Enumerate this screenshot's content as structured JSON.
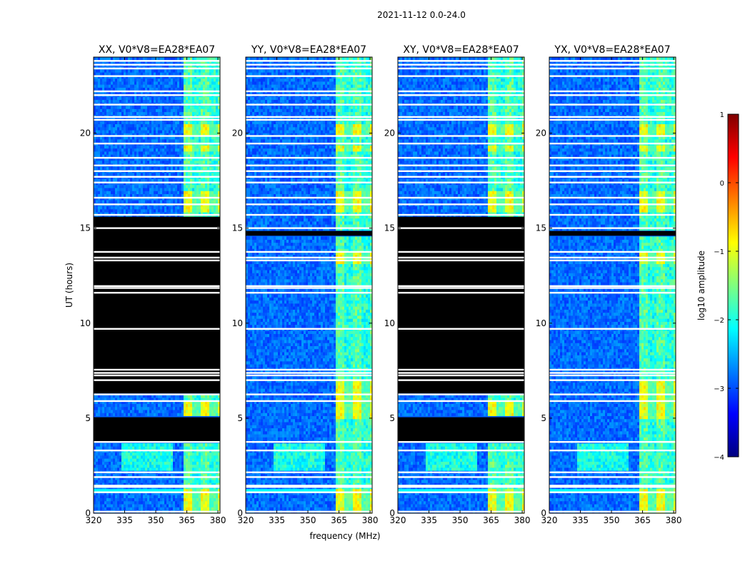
{
  "suptitle": "2021-11-12 0.0-24.0",
  "colors": {
    "cmap": [
      "#00007f",
      "#0000ff",
      "#007fff",
      "#00ffff",
      "#7fff7f",
      "#ffff00",
      "#ff7f00",
      "#ff0000",
      "#7f0000"
    ],
    "flagged_black": "#000000",
    "gap_white": "#ffffff"
  },
  "chart_data": [
    {
      "type": "heatmap",
      "title": "XX, V0*V8=EA28*EA07",
      "xlabel": "",
      "ylabel": "UT (hours)",
      "xlim": [
        320,
        381
      ],
      "ylim": [
        0,
        24
      ],
      "xticks": [
        "320",
        "335",
        "350",
        "365",
        "380"
      ],
      "yticks": [
        "0",
        "5",
        "10",
        "15",
        "20"
      ],
      "flag_bands_hours": [
        [
          3.75,
          5.05
        ],
        [
          6.3,
          15.6
        ]
      ],
      "strong_rfi_mhz": [
        [
          363,
          381
        ]
      ],
      "bright_hours": [
        [
          0,
          1.3
        ],
        [
          4.9,
          5.9
        ],
        [
          15.8,
          17.0
        ],
        [
          19.0,
          19.4
        ],
        [
          19.9,
          20.4
        ]
      ]
    },
    {
      "type": "heatmap",
      "title": "YY, V0*V8=EA28*EA07",
      "xlabel": "frequency (MHz)",
      "ylabel": "",
      "xlim": [
        320,
        381
      ],
      "ylim": [
        0,
        24
      ],
      "xticks": [
        "320",
        "335",
        "350",
        "365",
        "380"
      ],
      "yticks": [
        "0",
        "5",
        "10",
        "15",
        "20"
      ],
      "flag_bands_hours": [
        [
          14.6,
          14.85
        ]
      ],
      "strong_rfi_mhz": [
        [
          363,
          381
        ]
      ],
      "bright_hours": [
        [
          0,
          1.3
        ],
        [
          4.9,
          7.0
        ],
        [
          13.2,
          13.8
        ],
        [
          15.8,
          17.0
        ],
        [
          19.0,
          19.4
        ],
        [
          19.9,
          20.4
        ]
      ]
    },
    {
      "type": "heatmap",
      "title": "XY, V0*V8=EA28*EA07",
      "xlabel": "",
      "ylabel": "",
      "xlim": [
        320,
        381
      ],
      "ylim": [
        0,
        24
      ],
      "xticks": [
        "320",
        "335",
        "350",
        "365",
        "380"
      ],
      "yticks": [
        "0",
        "5",
        "10",
        "15",
        "20"
      ],
      "flag_bands_hours": [
        [
          3.75,
          5.05
        ],
        [
          6.3,
          15.6
        ]
      ],
      "strong_rfi_mhz": [
        [
          363,
          381
        ]
      ],
      "bright_hours": [
        [
          0,
          1.3
        ],
        [
          4.9,
          5.9
        ],
        [
          15.8,
          17.0
        ],
        [
          19.0,
          19.4
        ],
        [
          19.9,
          20.4
        ]
      ]
    },
    {
      "type": "heatmap",
      "title": "YX, V0*V8=EA28*EA07",
      "xlabel": "",
      "ylabel": "",
      "xlim": [
        320,
        381
      ],
      "ylim": [
        0,
        24
      ],
      "xticks": [
        "320",
        "335",
        "350",
        "365",
        "380"
      ],
      "yticks": [
        "0",
        "5",
        "10",
        "15",
        "20"
      ],
      "flag_bands_hours": [
        [
          14.6,
          14.85
        ]
      ],
      "strong_rfi_mhz": [
        [
          363,
          381
        ]
      ],
      "bright_hours": [
        [
          0,
          1.3
        ],
        [
          4.9,
          7.0
        ],
        [
          13.2,
          13.8
        ],
        [
          15.8,
          17.0
        ],
        [
          19.0,
          19.4
        ],
        [
          19.9,
          20.4
        ]
      ]
    }
  ],
  "white_gap_hours": [
    0.08,
    1.1,
    1.38,
    1.45,
    1.9,
    2.15,
    3.3,
    3.75,
    5.9,
    6.25,
    7.0,
    7.25,
    7.38,
    7.55,
    9.7,
    11.6,
    11.85,
    11.95,
    13.3,
    13.45,
    13.75,
    15.0,
    15.7,
    16.25,
    16.6,
    17.4,
    17.7,
    18.0,
    18.3,
    18.7,
    19.45,
    19.85,
    20.7,
    20.85,
    21.5,
    22.0,
    22.2,
    23.0,
    23.4,
    23.6,
    23.8
  ],
  "colorbar": {
    "label": "log10 amplitude",
    "vmin": -4,
    "vmax": 1,
    "ticks": [
      "1",
      "0",
      "−1",
      "−2",
      "−3",
      "−4"
    ]
  }
}
